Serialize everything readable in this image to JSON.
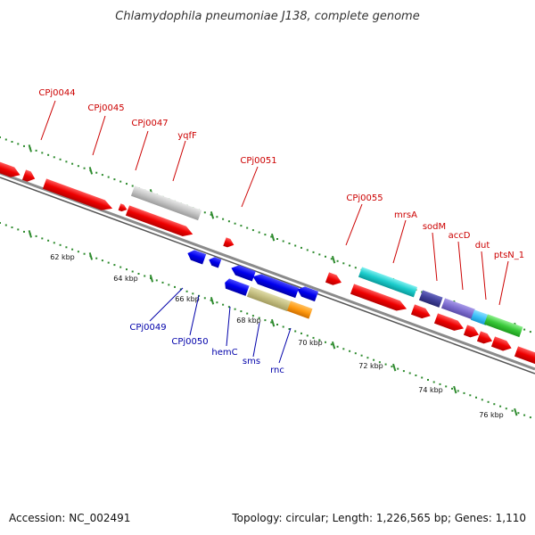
{
  "title": "Chlamydophila pneumoniae J138, complete genome",
  "footer": {
    "accession": "Accession: NC_002491",
    "summary": "Topology: circular; Length: 1,226,565 bp; Genes: 1,110"
  },
  "colors": {
    "forward_label": "#cc0000",
    "reverse_label": "#0000aa",
    "backbone": "#808080",
    "tick": "#2e8b2e"
  },
  "scale_labels": [
    "62 kbp",
    "64 kbp",
    "66 kbp",
    "68 kbp",
    "70 kbp",
    "72 kbp",
    "74 kbp",
    "76 kbp"
  ],
  "forward_gene_labels": [
    "CPj0044",
    "CPj0045",
    "CPj0047",
    "yqfF",
    "CPj0051",
    "CPj0055",
    "mrsA",
    "sodM",
    "accD",
    "dut",
    "ptsN_1"
  ],
  "reverse_gene_labels": [
    "CPj0049",
    "CPj0050",
    "hemC",
    "sms",
    "rnc"
  ]
}
